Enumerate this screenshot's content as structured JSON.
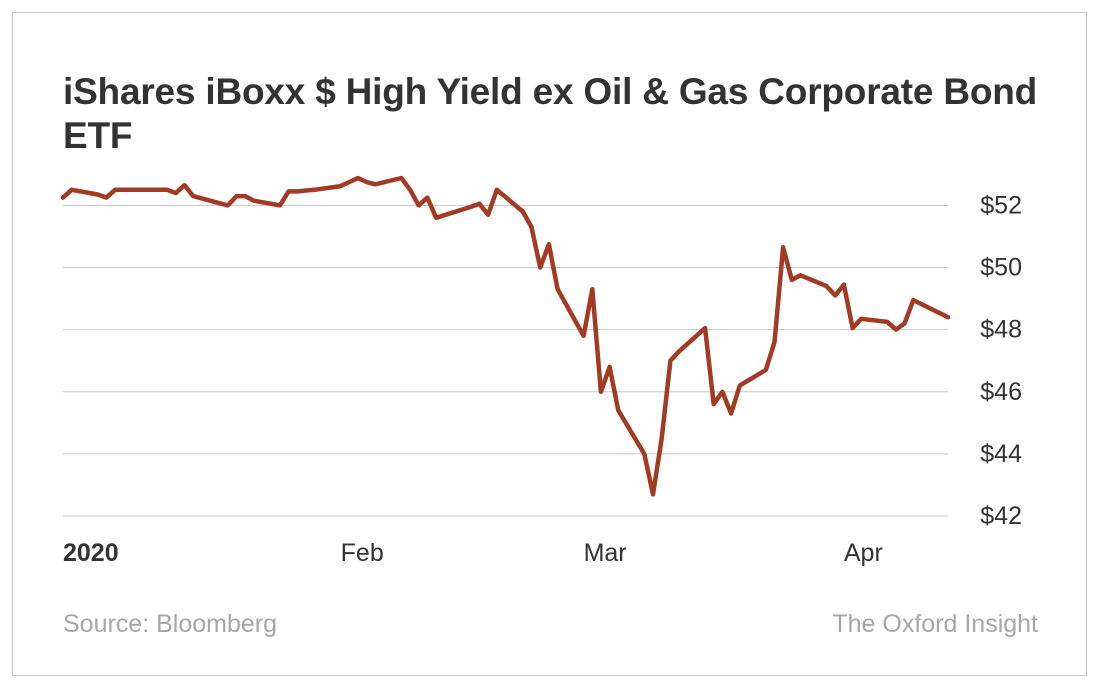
{
  "header": {
    "title": "iShares iBoxx $ High Yield ex Oil & Gas Corporate Bond ETF"
  },
  "footer": {
    "source": "Source: Bloomberg",
    "brand": "The Oxford Insight"
  },
  "colors": {
    "line": "#a33b24",
    "grid": "#c8c8c8",
    "text": "#333333",
    "muted": "#a6a6a6"
  },
  "chart_data": {
    "type": "line",
    "title": "iShares iBoxx $ High Yield ex Oil & Gas Corporate Bond ETF",
    "xlabel": "",
    "ylabel": "",
    "y_axis_side": "right",
    "ylim": [
      42,
      53.3
    ],
    "grid": "horizontal",
    "yticks": [
      {
        "value": 52,
        "label": "$52"
      },
      {
        "value": 50,
        "label": "$50"
      },
      {
        "value": 48,
        "label": "$48"
      },
      {
        "value": 46,
        "label": "$46"
      },
      {
        "value": 44,
        "label": "$44"
      },
      {
        "value": 42,
        "label": "$42"
      }
    ],
    "xticks": [
      {
        "date": "2020-01-02",
        "label": "2020",
        "bold": true
      },
      {
        "date": "2020-02-03",
        "label": "Feb",
        "bold": false
      },
      {
        "date": "2020-03-02",
        "label": "Mar",
        "bold": false
      },
      {
        "date": "2020-04-01",
        "label": "Apr",
        "bold": false
      }
    ],
    "series": [
      {
        "x": [
          "2020-01-02",
          "2020-01-03",
          "2020-01-06",
          "2020-01-07",
          "2020-01-08",
          "2020-01-09",
          "2020-01-10",
          "2020-01-13",
          "2020-01-14",
          "2020-01-15",
          "2020-01-16",
          "2020-01-17",
          "2020-01-21",
          "2020-01-22",
          "2020-01-23",
          "2020-01-24",
          "2020-01-27",
          "2020-01-28",
          "2020-01-29",
          "2020-01-30",
          "2020-01-31",
          "2020-02-03",
          "2020-02-04",
          "2020-02-05",
          "2020-02-06",
          "2020-02-07",
          "2020-02-10",
          "2020-02-11",
          "2020-02-12",
          "2020-02-13",
          "2020-02-14",
          "2020-02-18",
          "2020-02-19",
          "2020-02-20",
          "2020-02-21",
          "2020-02-24",
          "2020-02-25",
          "2020-02-26",
          "2020-02-27",
          "2020-02-28",
          "2020-03-02",
          "2020-03-03",
          "2020-03-04",
          "2020-03-05",
          "2020-03-06",
          "2020-03-09",
          "2020-03-10",
          "2020-03-11",
          "2020-03-12",
          "2020-03-13",
          "2020-03-16",
          "2020-03-17",
          "2020-03-18",
          "2020-03-19",
          "2020-03-20",
          "2020-03-23",
          "2020-03-24",
          "2020-03-25",
          "2020-03-26",
          "2020-03-27",
          "2020-03-30",
          "2020-03-31",
          "2020-04-01",
          "2020-04-02",
          "2020-04-03",
          "2020-04-06",
          "2020-04-07",
          "2020-04-08",
          "2020-04-09",
          "2020-04-13",
          "2020-04-14",
          "2020-04-15",
          "2020-04-16",
          "2020-04-17",
          "2020-04-20",
          "2020-04-21",
          "2020-04-22",
          "2020-04-23",
          "2020-04-24",
          "2020-04-27",
          "2020-04-28",
          "2020-04-29",
          "2020-04-30"
        ],
        "values": [
          52.25,
          52.5,
          52.35,
          52.25,
          52.5,
          52.5,
          52.5,
          52.5,
          52.5,
          52.4,
          52.65,
          52.3,
          52.0,
          52.3,
          52.3,
          52.15,
          52.0,
          52.45,
          52.45,
          52.48,
          52.5,
          52.62,
          52.75,
          52.88,
          52.75,
          52.68,
          52.88,
          52.5,
          52.0,
          52.25,
          51.6,
          51.95,
          52.05,
          51.7,
          52.5,
          51.8,
          51.3,
          50.0,
          50.75,
          49.3,
          47.8,
          49.3,
          46.0,
          46.8,
          45.4,
          44.0,
          42.7,
          44.5,
          47.0,
          47.3,
          48.05,
          45.6,
          46.0,
          45.3,
          46.2,
          46.7,
          47.6,
          50.65,
          49.6,
          49.75,
          49.4,
          49.1,
          49.45,
          48.05,
          48.35,
          48.25,
          48.0,
          48.2,
          48.95,
          48.4,
          null,
          null,
          null,
          null,
          null,
          null,
          null,
          null,
          null,
          null,
          null,
          null,
          null
        ]
      }
    ]
  }
}
